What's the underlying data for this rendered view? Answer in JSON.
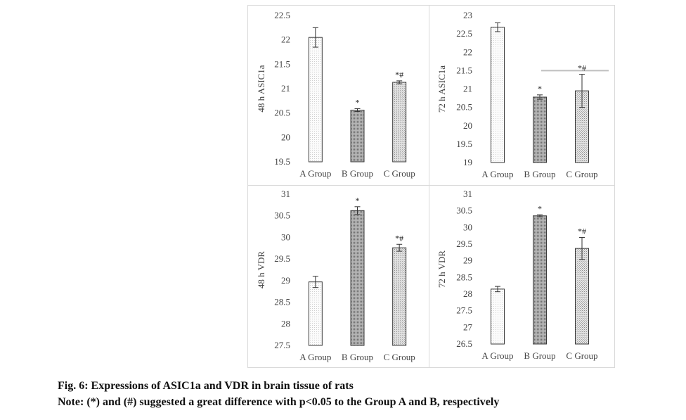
{
  "chart_data": [
    {
      "type": "bar",
      "title": "",
      "xlabel": "",
      "ylabel": "48 h ASIC1a",
      "categories": [
        "A Group",
        "B Group",
        "C Group"
      ],
      "values": [
        22.05,
        20.56,
        21.13
      ],
      "errors": [
        0.2,
        0.03,
        0.03
      ],
      "significance": [
        "",
        "*",
        "*#"
      ],
      "ylim": [
        19.5,
        22.5
      ],
      "yticks": [
        "19.5",
        "20",
        "20.5",
        "21",
        "21.5",
        "22",
        "22.5"
      ],
      "grid": false,
      "patterns": [
        "light-dots",
        "dense-dots",
        "medium-dots"
      ]
    },
    {
      "type": "bar",
      "title": "",
      "xlabel": "",
      "ylabel": "72 h ASIC1a",
      "categories": [
        "A Group",
        "B Group",
        "C Group"
      ],
      "values": [
        22.68,
        20.78,
        20.95
      ],
      "errors": [
        0.12,
        0.06,
        0.45
      ],
      "significance": [
        "",
        "*",
        "*#"
      ],
      "ylim": [
        19,
        23
      ],
      "yticks": [
        "19",
        "19.5",
        "20",
        "20.5",
        "21",
        "21.5",
        "22",
        "22.5",
        "23"
      ],
      "grid": false,
      "reference_line": 21.5,
      "patterns": [
        "light-dots",
        "dense-dots",
        "medium-dots"
      ]
    },
    {
      "type": "bar",
      "title": "",
      "xlabel": "",
      "ylabel": "48 h VDR",
      "categories": [
        "A Group",
        "B Group",
        "C Group"
      ],
      "values": [
        28.97,
        30.62,
        29.76
      ],
      "errors": [
        0.13,
        0.09,
        0.08
      ],
      "significance": [
        "",
        "*",
        "*#"
      ],
      "ylim": [
        27.5,
        31
      ],
      "yticks": [
        "27.5",
        "28",
        "28.5",
        "29",
        "29.5",
        "30",
        "30.5",
        "31"
      ],
      "grid": false,
      "patterns": [
        "light-dots",
        "dense-dots",
        "medium-dots"
      ]
    },
    {
      "type": "bar",
      "title": "",
      "xlabel": "",
      "ylabel": "72 h VDR",
      "categories": [
        "A Group",
        "B Group",
        "C Group"
      ],
      "values": [
        28.15,
        30.35,
        29.37
      ],
      "errors": [
        0.08,
        0.03,
        0.33
      ],
      "significance": [
        "",
        "*",
        "*#"
      ],
      "ylim": [
        26.5,
        31
      ],
      "yticks": [
        "26.5",
        "27",
        "27.5",
        "28",
        "28.5",
        "29",
        "29.5",
        "30",
        "30.5",
        "31"
      ],
      "grid": false,
      "patterns": [
        "light-dots",
        "dense-dots",
        "medium-dots"
      ]
    }
  ],
  "caption": {
    "title": "Fig. 6: Expressions of ASIC1a and VDR in brain tissue of rats",
    "note": "Note: (*) and (#) suggested a great difference with p<0.05 to the Group A and B, respectively"
  },
  "colors": {
    "frame": "#d9d9d9",
    "bar_stroke": "#3a3a3a",
    "text": "#444444",
    "reference_line": "#bfbfbf"
  }
}
